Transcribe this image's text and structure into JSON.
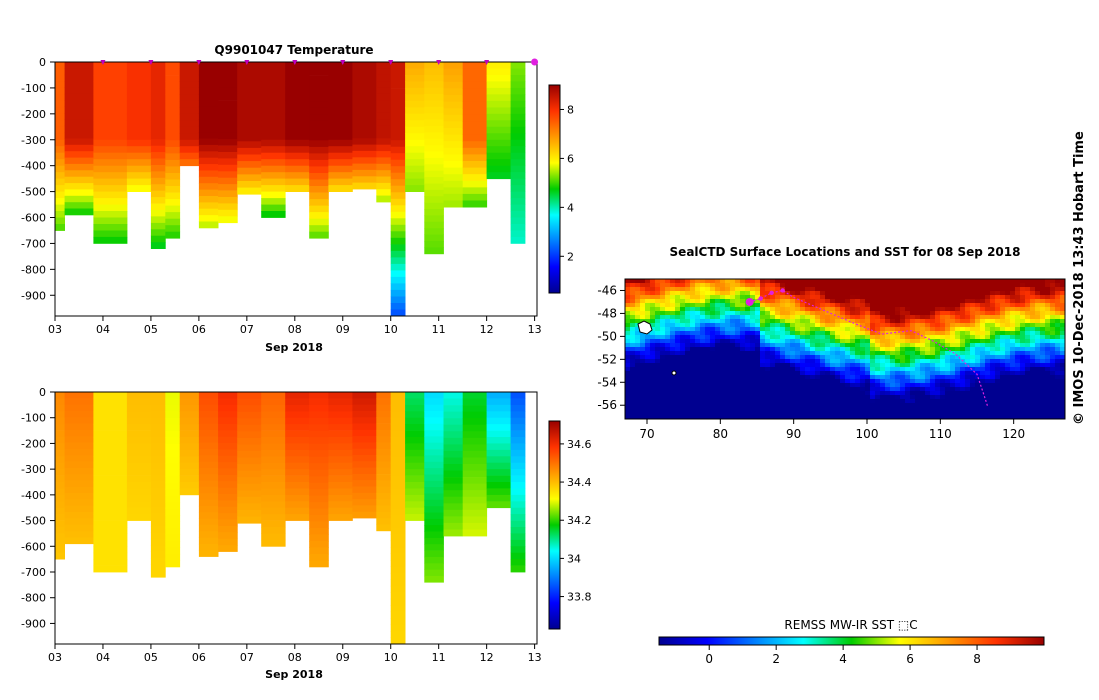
{
  "chart_data": [
    {
      "type": "heatmap",
      "title": "Q9901047  Temperature",
      "xlabel": "Sep 2018",
      "x_ticks": [
        "03",
        "04",
        "05",
        "06",
        "07",
        "08",
        "09",
        "10",
        "11",
        "12",
        "13"
      ],
      "y_ticks": [
        "0",
        "-100",
        "-200",
        "-300",
        "-400",
        "-500",
        "-600",
        "-700",
        "-800",
        "-900"
      ],
      "ylim": [
        -980,
        0
      ],
      "colorbar": {
        "ticks": [
          "2",
          "4",
          "6",
          "8"
        ],
        "range": [
          0.5,
          9
        ]
      },
      "profile_days": [
        3.0,
        3.2,
        3.8,
        4.5,
        5.0,
        5.3,
        5.6,
        6.0,
        6.4,
        6.8,
        7.3,
        7.8,
        8.3,
        8.7,
        9.2,
        9.7,
        10.0,
        10.3,
        10.7,
        11.1,
        11.5,
        12.0,
        12.5
      ],
      "profile_depths": [
        650,
        590,
        700,
        500,
        720,
        680,
        400,
        640,
        620,
        510,
        600,
        500,
        680,
        500,
        490,
        540,
        980,
        500,
        740,
        560,
        560,
        450,
        700
      ],
      "surface_temps": [
        7.5,
        8.5,
        7.8,
        8.0,
        8.2,
        7.7,
        8.5,
        9.0,
        9.0,
        8.8,
        8.8,
        9.0,
        9.0,
        9.0,
        8.8,
        8.6,
        8.5,
        6.7,
        6.5,
        6.8,
        7.4,
        6.0,
        5.3
      ],
      "markers_days": [
        4,
        5,
        6,
        7,
        8,
        9,
        10,
        11,
        12,
        13
      ]
    },
    {
      "type": "heatmap",
      "title": "",
      "xlabel": "Sep 2018",
      "x_ticks": [
        "03",
        "04",
        "05",
        "06",
        "07",
        "08",
        "09",
        "10",
        "11",
        "12",
        "13"
      ],
      "y_ticks": [
        "0",
        "-100",
        "-200",
        "-300",
        "-400",
        "-500",
        "-600",
        "-700",
        "-800",
        "-900"
      ],
      "ylim": [
        -980,
        0
      ],
      "colorbar": {
        "ticks": [
          "33.8",
          "34",
          "34.2",
          "34.4",
          "34.6"
        ],
        "range": [
          33.63,
          34.72
        ]
      },
      "surface_salinity": [
        34.47,
        34.5,
        34.35,
        34.4,
        34.4,
        34.3,
        34.45,
        34.55,
        34.6,
        34.55,
        34.52,
        34.62,
        34.6,
        34.62,
        34.65,
        34.5,
        34.4,
        34.12,
        34.0,
        34.05,
        34.15,
        33.95,
        33.85
      ]
    },
    {
      "type": "heatmap",
      "title": "SealCTD Surface Locations and SST for 08 Sep 2018",
      "x_ticks": [
        "70",
        "80",
        "90",
        "100",
        "110",
        "120"
      ],
      "y_ticks": [
        "-46",
        "-48",
        "-50",
        "-52",
        "-54",
        "-56"
      ],
      "xlim": [
        67,
        127
      ],
      "ylim": [
        -57.2,
        -45
      ],
      "colorbar": {
        "label": "REMSS MW-IR SST ⬚C",
        "ticks": [
          "0",
          "2",
          "4",
          "6",
          "8"
        ],
        "range": [
          -1.5,
          10
        ]
      },
      "track_points": [
        [
          84.0,
          -47.0
        ],
        [
          85.5,
          -46.7
        ],
        [
          87.0,
          -46.2
        ],
        [
          88.5,
          -46.0
        ],
        [
          90.0,
          -46.6
        ],
        [
          94.0,
          -47.7
        ],
        [
          98.0,
          -48.8
        ],
        [
          102.0,
          -49.8
        ],
        [
          106.0,
          -49.5
        ],
        [
          109.0,
          -50.4
        ],
        [
          112.0,
          -51.5
        ],
        [
          115.0,
          -53.3
        ],
        [
          116.0,
          -55.2
        ],
        [
          116.5,
          -56.2
        ]
      ],
      "seal_position": [
        84.0,
        -47.0
      ]
    }
  ],
  "watermark": "©  IMOS 10-Dec-2018 13:43 Hobart Time"
}
